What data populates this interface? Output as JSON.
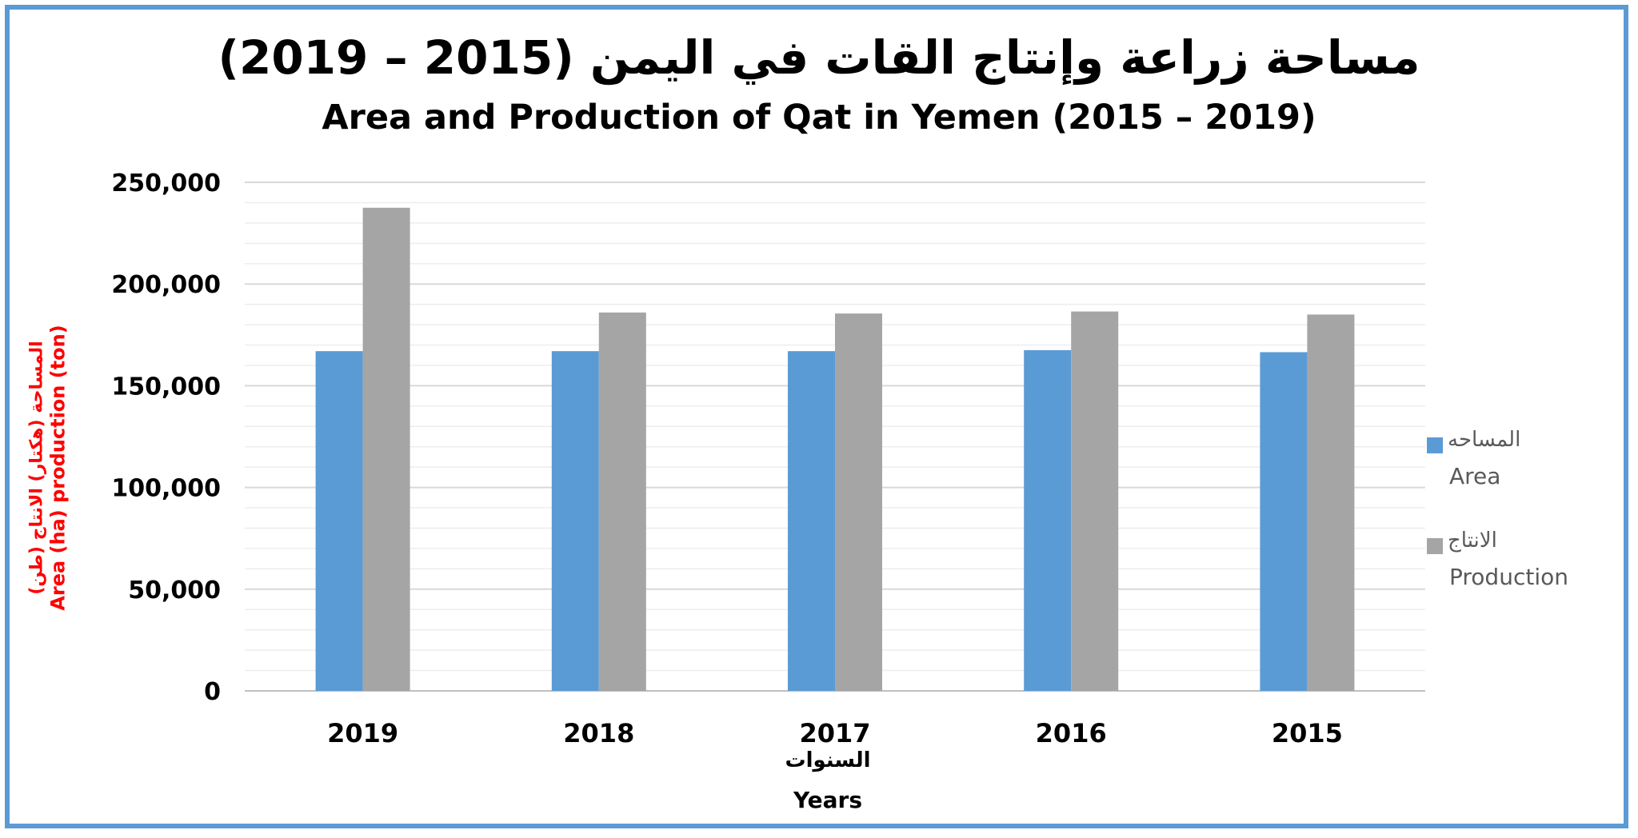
{
  "title_ar": "مساحة زراعة وإنتاج القات في اليمن (2015 – 2019)",
  "title_en": "Area and Production of Qat in Yemen (2015 – 2019)",
  "ylabel_ar": "المساحة (هكتار) الانتاج (طن)",
  "ylabel_en": "Area (ha) production (ton)",
  "xlabel_ar": "السنوات",
  "xlabel_en": "Years",
  "legend": [
    {
      "name_ar": "المساحه",
      "name_en": "Area",
      "color": "#5b9bd5"
    },
    {
      "name_ar": "الانتاج",
      "name_en": "Production",
      "color": "#a5a5a5"
    }
  ],
  "chart_data": {
    "type": "bar",
    "categories": [
      "2019",
      "2018",
      "2017",
      "2016",
      "2015"
    ],
    "series": [
      {
        "name": "Area",
        "color": "#5b9bd5",
        "values": [
          167000,
          167000,
          167000,
          167500,
          166500
        ]
      },
      {
        "name": "Production",
        "color": "#a5a5a5",
        "values": [
          237500,
          186000,
          185500,
          186500,
          185000
        ]
      }
    ],
    "ylim": [
      0,
      250000
    ],
    "yticks": [
      0,
      50000,
      100000,
      150000,
      200000,
      250000
    ],
    "ytick_labels": [
      "0",
      "50,000",
      "100,000",
      "150,000",
      "200,000",
      "250,000"
    ],
    "grid": true,
    "legend_position": "right"
  }
}
